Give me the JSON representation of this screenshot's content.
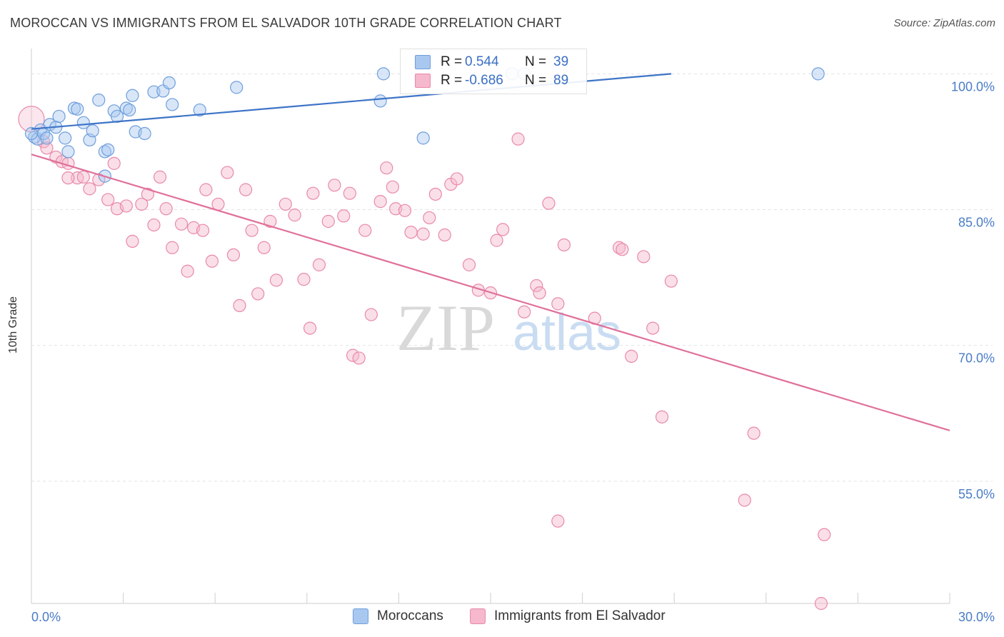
{
  "header": {
    "title": "MOROCCAN VS IMMIGRANTS FROM EL SALVADOR 10TH GRADE CORRELATION CHART",
    "source": "Source: ZipAtlas.com"
  },
  "watermark": {
    "zip": "ZIP",
    "atlas": "atlas"
  },
  "legend": {
    "moroccans": {
      "r_label": "R =",
      "r_value": "0.544",
      "n_label": "N =",
      "n_value": "39"
    },
    "salvador": {
      "r_label": "R =",
      "r_value": "-0.686",
      "n_label": "N =",
      "n_value": "89"
    }
  },
  "bottom_legend": {
    "moroccans": "Moroccans",
    "salvador": "Immigrants from El Salvador"
  },
  "colors": {
    "blue_fill": "#a9c8f0",
    "blue_stroke": "#6f9fdc",
    "blue_line": "#3e74c8",
    "pink_fill": "#f5b8cc",
    "pink_stroke": "#e98aa8",
    "pink_line": "#e0709a",
    "label": "#4a7cc7",
    "grid": "#e3e3e3"
  },
  "chart_data": {
    "type": "scatter",
    "title": "MOROCCAN VS IMMIGRANTS FROM EL SALVADOR 10TH GRADE CORRELATION CHART",
    "xlabel": "",
    "ylabel": "10th Grade",
    "xlim": [
      0,
      30
    ],
    "ylim": [
      41.5,
      102
    ],
    "x_tick_labels": [
      {
        "value": 0,
        "label": "0.0%"
      },
      {
        "value": 30,
        "label": "30.0%"
      }
    ],
    "y_tick_labels": [
      {
        "value": 100,
        "label": "100.0%"
      },
      {
        "value": 85,
        "label": "85.0%"
      },
      {
        "value": 70,
        "label": "70.0%"
      },
      {
        "value": 55,
        "label": "55.0%"
      }
    ],
    "series": [
      {
        "name": "Moroccans",
        "color": "blue",
        "trend": {
          "x": [
            0,
            20.9
          ],
          "y": [
            93.9,
            100.0
          ]
        },
        "points": [
          [
            0.1,
            93.0
          ],
          [
            0.2,
            92.8
          ],
          [
            0.3,
            93.8
          ],
          [
            0.4,
            93.4
          ],
          [
            0.5,
            92.9
          ],
          [
            0.6,
            94.4
          ],
          [
            0.8,
            94.1
          ],
          [
            0.9,
            95.3
          ],
          [
            1.1,
            92.9
          ],
          [
            1.2,
            91.4
          ],
          [
            1.4,
            96.2
          ],
          [
            1.5,
            96.1
          ],
          [
            1.7,
            94.6
          ],
          [
            1.9,
            92.7
          ],
          [
            2.0,
            93.7
          ],
          [
            2.2,
            97.1
          ],
          [
            2.4,
            91.4
          ],
          [
            2.5,
            91.6
          ],
          [
            2.4,
            88.7
          ],
          [
            2.7,
            95.9
          ],
          [
            2.8,
            95.3
          ],
          [
            3.1,
            96.2
          ],
          [
            3.2,
            96.0
          ],
          [
            3.3,
            97.6
          ],
          [
            3.4,
            93.6
          ],
          [
            3.7,
            93.4
          ],
          [
            4.0,
            98.0
          ],
          [
            4.3,
            98.1
          ],
          [
            4.5,
            99.0
          ],
          [
            4.6,
            96.6
          ],
          [
            5.5,
            96.0
          ],
          [
            6.7,
            98.5
          ],
          [
            11.5,
            100.0
          ],
          [
            11.4,
            97.0
          ],
          [
            12.8,
            92.9
          ],
          [
            15.7,
            100.0
          ],
          [
            16.1,
            100.0
          ],
          [
            25.7,
            100.0
          ],
          [
            0.0,
            93.4
          ]
        ]
      },
      {
        "name": "Immigrants from El Salvador",
        "color": "pink",
        "trend": {
          "x": [
            0,
            30
          ],
          "y": [
            91.1,
            60.6
          ]
        },
        "points": [
          [
            0.0,
            95.0
          ],
          [
            0.4,
            92.5
          ],
          [
            0.5,
            91.8
          ],
          [
            0.8,
            90.8
          ],
          [
            1.0,
            90.3
          ],
          [
            1.2,
            90.1
          ],
          [
            1.5,
            88.5
          ],
          [
            1.7,
            88.6
          ],
          [
            1.9,
            87.3
          ],
          [
            2.2,
            88.3
          ],
          [
            2.5,
            86.1
          ],
          [
            2.7,
            90.1
          ],
          [
            2.8,
            85.1
          ],
          [
            3.1,
            85.4
          ],
          [
            3.3,
            81.5
          ],
          [
            3.6,
            85.6
          ],
          [
            3.8,
            86.7
          ],
          [
            4.0,
            83.3
          ],
          [
            4.2,
            88.6
          ],
          [
            4.4,
            85.1
          ],
          [
            4.6,
            80.8
          ],
          [
            4.9,
            83.4
          ],
          [
            5.1,
            78.2
          ],
          [
            5.3,
            83.0
          ],
          [
            5.6,
            82.7
          ],
          [
            5.7,
            87.2
          ],
          [
            5.9,
            79.3
          ],
          [
            6.1,
            85.6
          ],
          [
            6.4,
            89.1
          ],
          [
            6.6,
            80.0
          ],
          [
            6.8,
            74.4
          ],
          [
            7.0,
            87.2
          ],
          [
            7.2,
            82.7
          ],
          [
            7.4,
            75.7
          ],
          [
            7.6,
            80.8
          ],
          [
            7.8,
            83.7
          ],
          [
            8.0,
            77.2
          ],
          [
            8.3,
            85.6
          ],
          [
            8.6,
            84.4
          ],
          [
            8.9,
            77.3
          ],
          [
            9.1,
            71.9
          ],
          [
            9.2,
            86.8
          ],
          [
            9.4,
            78.9
          ],
          [
            9.7,
            83.7
          ],
          [
            9.9,
            87.7
          ],
          [
            10.2,
            84.3
          ],
          [
            10.4,
            86.8
          ],
          [
            10.5,
            68.9
          ],
          [
            10.7,
            68.6
          ],
          [
            10.9,
            82.7
          ],
          [
            11.1,
            73.4
          ],
          [
            11.4,
            85.9
          ],
          [
            11.6,
            89.6
          ],
          [
            11.8,
            87.5
          ],
          [
            11.9,
            85.1
          ],
          [
            12.2,
            84.9
          ],
          [
            12.4,
            82.5
          ],
          [
            12.8,
            82.3
          ],
          [
            13.0,
            84.1
          ],
          [
            13.2,
            86.7
          ],
          [
            13.5,
            82.2
          ],
          [
            13.7,
            87.8
          ],
          [
            13.9,
            88.4
          ],
          [
            14.3,
            78.9
          ],
          [
            14.6,
            76.1
          ],
          [
            15.0,
            75.8
          ],
          [
            15.2,
            81.6
          ],
          [
            15.4,
            82.8
          ],
          [
            15.9,
            92.8
          ],
          [
            16.1,
            73.7
          ],
          [
            16.5,
            76.6
          ],
          [
            16.6,
            75.8
          ],
          [
            16.9,
            85.7
          ],
          [
            17.2,
            74.6
          ],
          [
            17.4,
            81.1
          ],
          [
            18.4,
            73.0
          ],
          [
            19.2,
            80.8
          ],
          [
            19.3,
            80.6
          ],
          [
            19.6,
            68.8
          ],
          [
            20.0,
            79.8
          ],
          [
            20.3,
            71.9
          ],
          [
            20.6,
            62.1
          ],
          [
            20.9,
            77.1
          ],
          [
            17.2,
            50.6
          ],
          [
            23.6,
            60.3
          ],
          [
            23.3,
            52.9
          ],
          [
            25.9,
            49.1
          ],
          [
            25.8,
            41.5
          ],
          [
            1.2,
            88.5
          ]
        ]
      }
    ]
  }
}
